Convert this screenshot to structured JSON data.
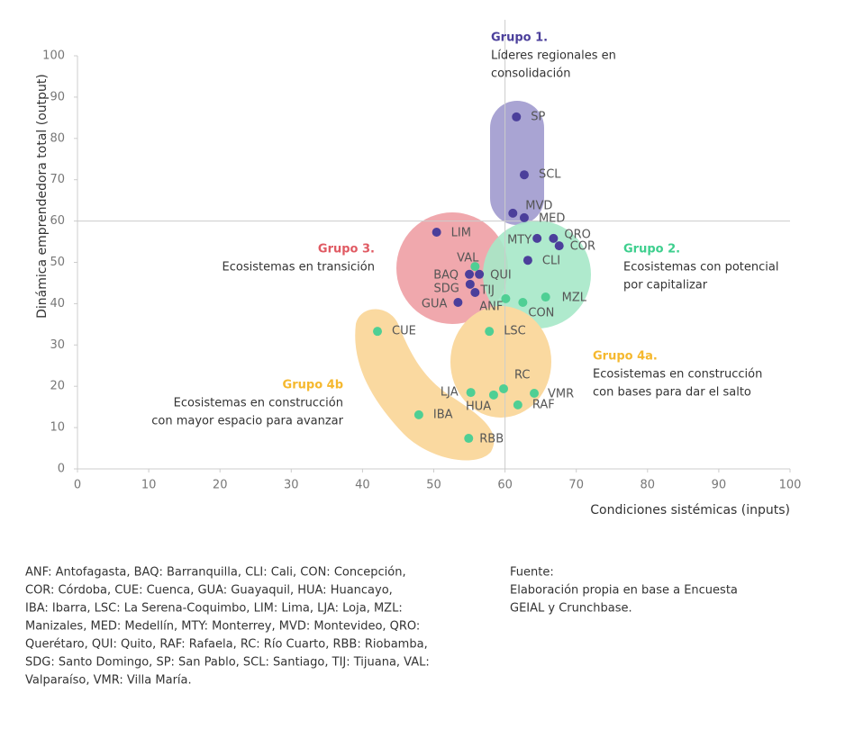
{
  "chart_data": {
    "type": "scatter",
    "xlabel": "Condiciones sistémicas (inputs)",
    "ylabel": "Dinámica emprendedora total (output)",
    "xlim": [
      0,
      100
    ],
    "ylim": [
      0,
      100
    ],
    "xticks": [
      0,
      10,
      20,
      30,
      40,
      50,
      60,
      70,
      80,
      90,
      100
    ],
    "yticks": [
      0,
      10,
      20,
      30,
      40,
      50,
      60,
      70,
      80,
      90,
      100
    ],
    "reference_lines": {
      "x": 60,
      "y": 60
    },
    "series": [
      {
        "color": "#4b3f9b",
        "labels": [
          "SP",
          "SCL",
          "MVD",
          "MED",
          "MTY",
          "QRO",
          "COR",
          "CLI",
          "LIM",
          "BAQ",
          "QUI",
          "SDG",
          "TIJ",
          "GUA"
        ],
        "x": [
          61.6,
          62.7,
          61.1,
          62.7,
          64.5,
          66.8,
          67.6,
          63.2,
          50.4,
          55.0,
          56.4,
          55.1,
          55.8,
          53.4
        ],
        "values": [
          85.2,
          71.2,
          61.9,
          60.8,
          55.8,
          55.8,
          54.0,
          50.5,
          57.3,
          47.1,
          47.1,
          44.7,
          42.7,
          40.3
        ]
      },
      {
        "color": "#4fcf94",
        "labels": [
          "VAL",
          "ANF",
          "CON",
          "MZL",
          "CUE",
          "LSC",
          "RC",
          "LJA",
          "HUA",
          "VMR",
          "RAF",
          "IBA",
          "RBB"
        ],
        "x": [
          55.8,
          60.1,
          62.5,
          65.7,
          42.1,
          57.8,
          59.8,
          55.2,
          58.4,
          64.1,
          61.8,
          47.9,
          54.9
        ],
        "values": [
          49.0,
          41.2,
          40.3,
          41.6,
          33.3,
          33.3,
          19.4,
          18.5,
          17.9,
          18.3,
          15.5,
          13.1,
          7.4
        ]
      }
    ],
    "groups": [
      {
        "title": "Grupo 1.",
        "color": "#4b3f9b",
        "lines": [
          "Líderes regionales en",
          "consolidación"
        ]
      },
      {
        "title": "Grupo 3.",
        "color": "#e05a63",
        "lines": [
          "Ecosistemas en transición"
        ]
      },
      {
        "title": "Grupo 2.",
        "color": "#3ecf8e",
        "lines": [
          "Ecosistemas con potencial",
          "por capitalizar"
        ]
      },
      {
        "title": "Grupo 4a.",
        "color": "#f5b82e",
        "lines": [
          "Ecosistemas en construcción",
          "con bases para dar el salto"
        ]
      },
      {
        "title": "Grupo 4b",
        "color": "#f5b82e",
        "lines": [
          "Ecosistemas en construcción",
          "con mayor espacio para avanzar"
        ]
      }
    ]
  },
  "footer": {
    "note": [
      "ANF: Antofagasta, BAQ: Barranquilla, CLI: Cali, CON: Concepción,",
      "COR: Córdoba, CUE: Cuenca, GUA: Guayaquil, HUA: Huancayo,",
      "IBA: Ibarra, LSC: La Serena-Coquimbo, LIM: Lima, LJA: Loja, MZL:",
      "Manizales, MED: Medellín, MTY: Monterrey, MVD: Montevideo, QRO:",
      "Querétaro, QUI: Quito, RAF: Rafaela, RC: Río Cuarto, RBB: Riobamba,",
      "SDG: Santo Domingo, SP: San Pablo, SCL: Santiago, TIJ: Tijuana, VAL:",
      "Valparaíso, VMR: Villa María."
    ],
    "source": [
      "Fuente:",
      "Elaboración propia en base a Encuesta",
      "GEIAL y Crunchbase."
    ]
  }
}
